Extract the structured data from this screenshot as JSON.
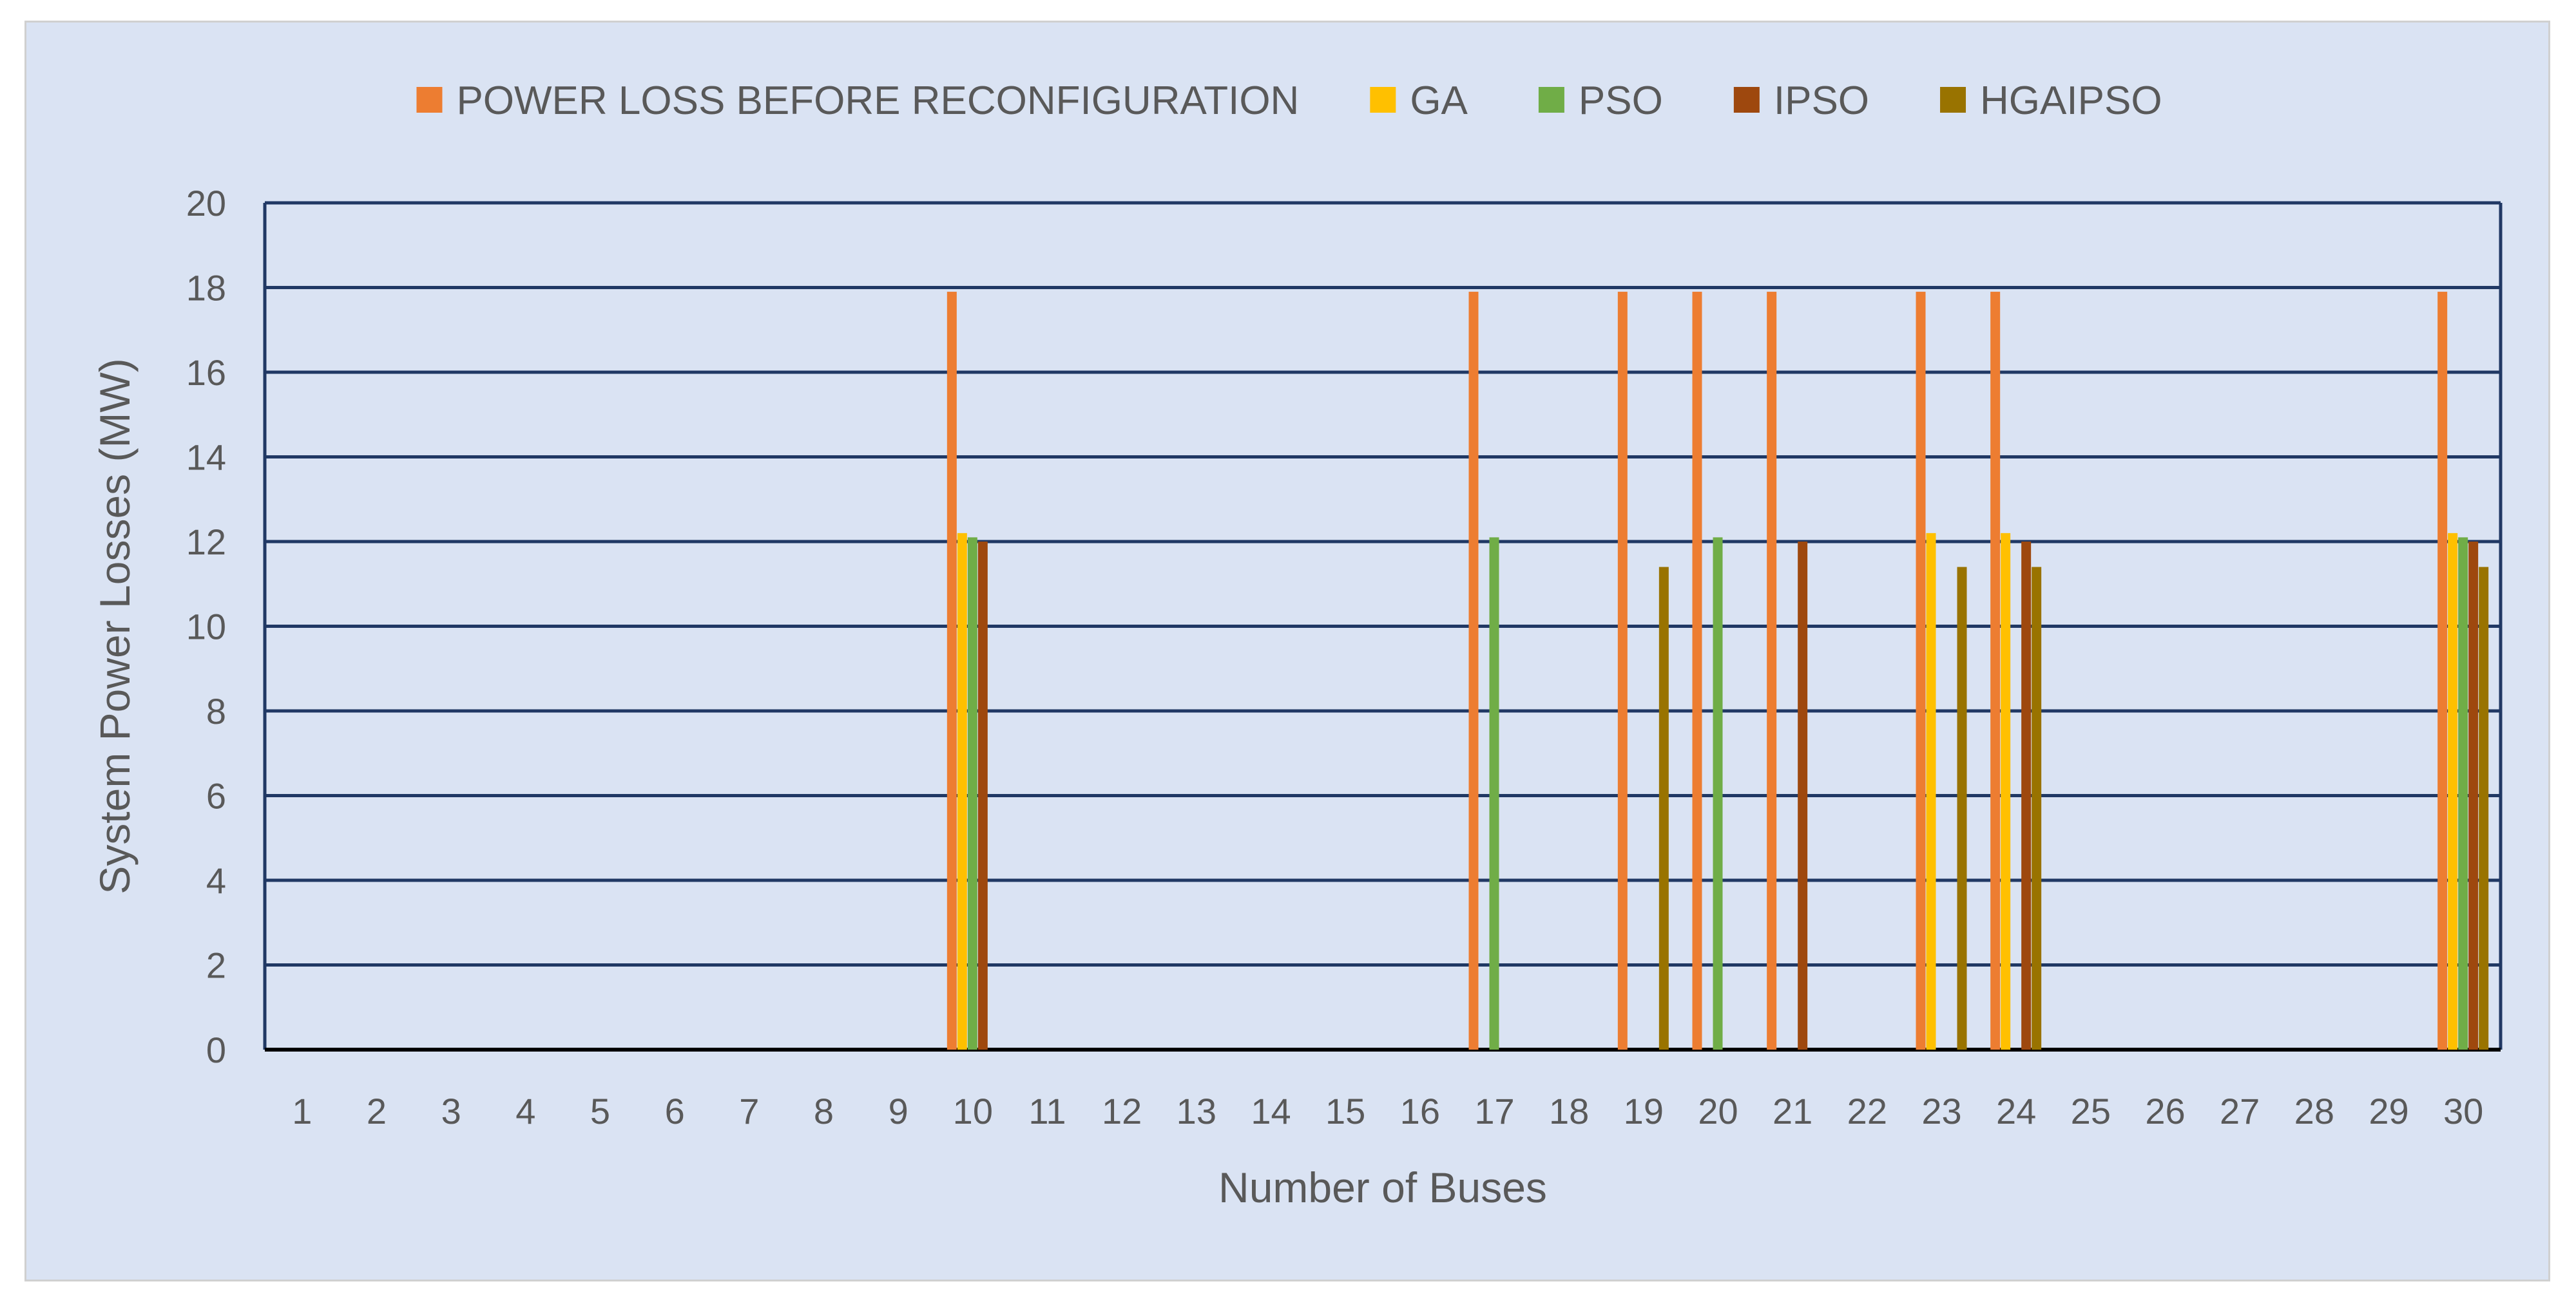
{
  "chart_data": {
    "type": "bar",
    "title": "",
    "xlabel": "Number of Buses",
    "ylabel": "System Power Losses (MW)",
    "ylim": [
      0,
      20
    ],
    "yticks": [
      0,
      2,
      4,
      6,
      8,
      10,
      12,
      14,
      16,
      18,
      20
    ],
    "legend_position": "top",
    "grid": true,
    "categories": [
      "1",
      "2",
      "3",
      "4",
      "5",
      "6",
      "7",
      "8",
      "9",
      "10",
      "11",
      "12",
      "13",
      "14",
      "15",
      "16",
      "17",
      "18",
      "19",
      "20",
      "21",
      "22",
      "23",
      "24",
      "25",
      "26",
      "27",
      "28",
      "29",
      "30"
    ],
    "series": [
      {
        "name": "POWER LOSS BEFORE RECONFIGURATION",
        "color": "#ed7d31",
        "values": [
          0,
          0,
          0,
          0,
          0,
          0,
          0,
          0,
          0,
          17.9,
          0,
          0,
          0,
          0,
          0,
          0,
          17.9,
          0,
          17.9,
          17.9,
          17.9,
          0,
          17.9,
          17.9,
          0,
          0,
          0,
          0,
          0,
          17.9
        ]
      },
      {
        "name": "GA",
        "color": "#ffc000",
        "values": [
          0,
          0,
          0,
          0,
          0,
          0,
          0,
          0,
          0,
          12.2,
          0,
          0,
          0,
          0,
          0,
          0,
          0,
          0,
          0,
          0,
          0,
          0,
          12.2,
          12.2,
          0,
          0,
          0,
          0,
          0,
          12.2
        ]
      },
      {
        "name": "PSO",
        "color": "#70ad47",
        "values": [
          0,
          0,
          0,
          0,
          0,
          0,
          0,
          0,
          0,
          12.1,
          0,
          0,
          0,
          0,
          0,
          0,
          12.1,
          0,
          0,
          12.1,
          0,
          0,
          0,
          0,
          0,
          0,
          0,
          0,
          0,
          12.1
        ]
      },
      {
        "name": "IPSO",
        "color": "#9e480e",
        "values": [
          0,
          0,
          0,
          0,
          0,
          0,
          0,
          0,
          0,
          12.0,
          0,
          0,
          0,
          0,
          0,
          0,
          0,
          0,
          0,
          0,
          12.0,
          0,
          0,
          12.0,
          0,
          0,
          0,
          0,
          0,
          12.0
        ]
      },
      {
        "name": "HGAIPSO",
        "color": "#997300",
        "values": [
          0,
          0,
          0,
          0,
          0,
          0,
          0,
          0,
          0,
          0,
          0,
          0,
          0,
          0,
          0,
          0,
          0,
          0,
          11.4,
          0,
          0,
          0,
          11.4,
          11.4,
          0,
          0,
          0,
          0,
          0,
          11.4
        ]
      }
    ]
  },
  "colors": {
    "background": "#dae3f3",
    "gridline": "#203864",
    "text": "#595959"
  }
}
